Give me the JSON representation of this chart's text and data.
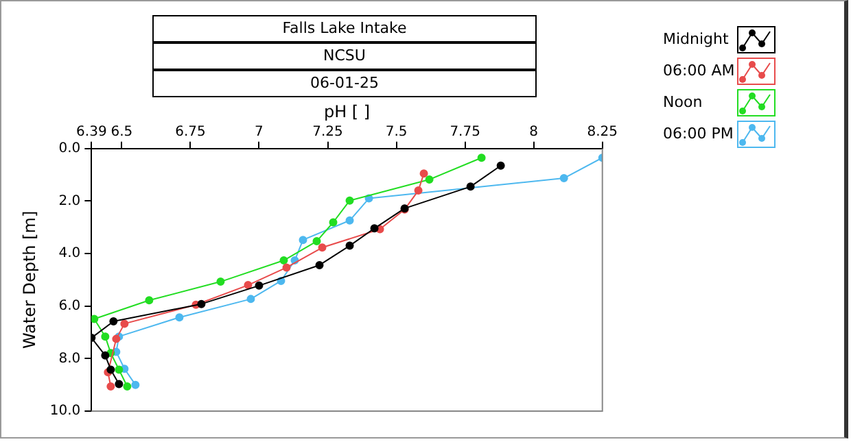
{
  "chart_data": {
    "type": "line",
    "title": "Falls Lake Intake",
    "subtitle": "NCSU",
    "annotations": [
      "06-01-25"
    ],
    "xlabel": "pH [ ]",
    "ylabel": "Water Depth [m]",
    "xlim": [
      6.39,
      8.25
    ],
    "xticks": [
      6.39,
      6.5,
      6.75,
      7,
      7.25,
      7.5,
      7.75,
      8,
      8.25
    ],
    "ylim": [
      10,
      0
    ],
    "yticks": [
      {
        "value": 0,
        "label": "0.0"
      },
      {
        "value": 2,
        "label": "2.0"
      },
      {
        "value": 4,
        "label": "4.0"
      },
      {
        "value": 6,
        "label": "6.0"
      },
      {
        "value": 8,
        "label": "8.0"
      },
      {
        "value": 10,
        "label": "10.0"
      }
    ],
    "grid": false,
    "legend": "right",
    "marker": "circle",
    "line_style": "solid",
    "series": [
      {
        "name": "Midnight",
        "color": "#000000",
        "x": [
          7.88,
          7.77,
          7.53,
          7.42,
          7.33,
          7.22,
          7.0,
          6.79,
          6.47,
          6.39,
          6.44,
          6.46,
          6.49
        ],
        "values": [
          0.65,
          1.45,
          2.28,
          3.04,
          3.7,
          4.44,
          5.22,
          5.92,
          6.58,
          7.21,
          7.88,
          8.42,
          8.97
        ]
      },
      {
        "name": "06:00 AM",
        "color": "#e84b4b",
        "x": [
          7.6,
          7.58,
          7.53,
          7.44,
          7.23,
          7.1,
          6.96,
          6.77,
          6.51,
          6.48,
          6.45,
          6.46
        ],
        "values": [
          0.95,
          1.6,
          2.32,
          3.07,
          3.77,
          4.53,
          5.2,
          5.95,
          6.67,
          7.25,
          8.52,
          9.06
        ]
      },
      {
        "name": "Noon",
        "color": "#22dd22",
        "x": [
          7.81,
          7.62,
          7.33,
          7.27,
          7.21,
          7.09,
          6.86,
          6.6,
          6.4,
          6.44,
          6.46,
          6.49,
          6.52
        ],
        "values": [
          0.35,
          1.18,
          1.98,
          2.81,
          3.53,
          4.26,
          5.07,
          5.78,
          6.49,
          7.16,
          7.79,
          8.42,
          9.06
        ]
      },
      {
        "name": "06:00 PM",
        "color": "#4db8ef",
        "x": [
          8.25,
          8.11,
          7.4,
          7.33,
          7.16,
          7.13,
          7.08,
          6.97,
          6.71,
          6.49,
          6.48,
          6.51,
          6.55
        ],
        "values": [
          0.35,
          1.13,
          1.9,
          2.74,
          3.48,
          4.26,
          5.04,
          5.73,
          6.43,
          7.16,
          7.74,
          8.39,
          9.0
        ]
      }
    ]
  }
}
